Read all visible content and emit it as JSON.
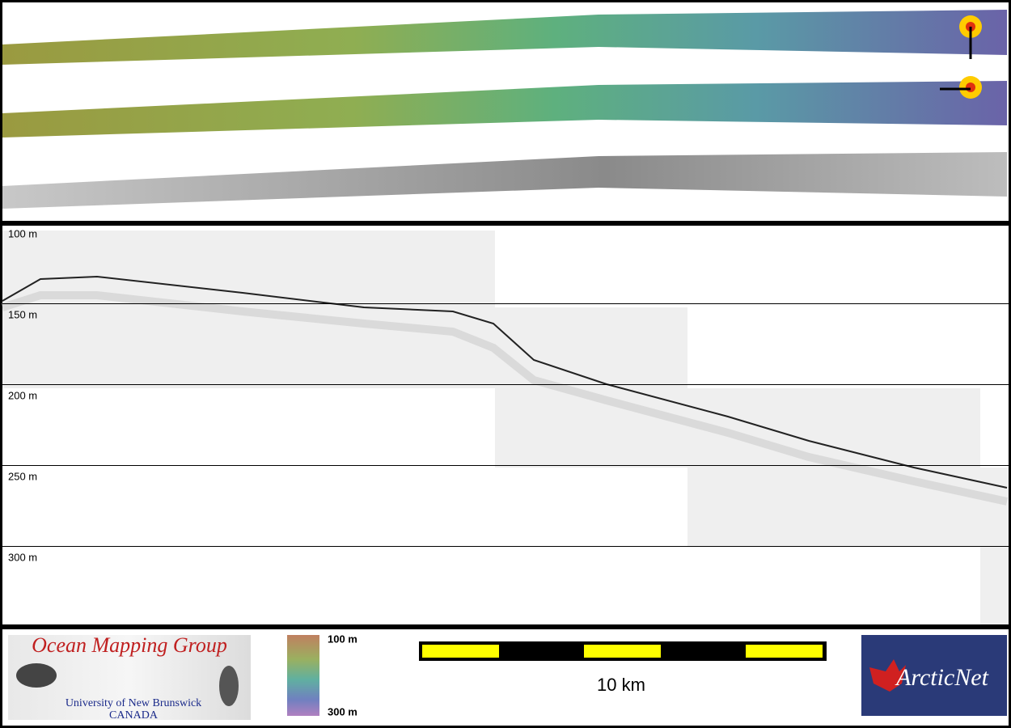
{
  "profile": {
    "depth_labels": [
      "100 m",
      "150 m",
      "200 m",
      "250 m",
      "300 m"
    ]
  },
  "legend": {
    "colorbar_top": "100 m",
    "colorbar_bottom": "300 m",
    "scale_label": "10 km"
  },
  "logos": {
    "omg_title": "Ocean Mapping Group",
    "omg_university": "University of New Brunswick",
    "omg_country": "CANADA",
    "arcticnet": "ArcticNet"
  }
}
